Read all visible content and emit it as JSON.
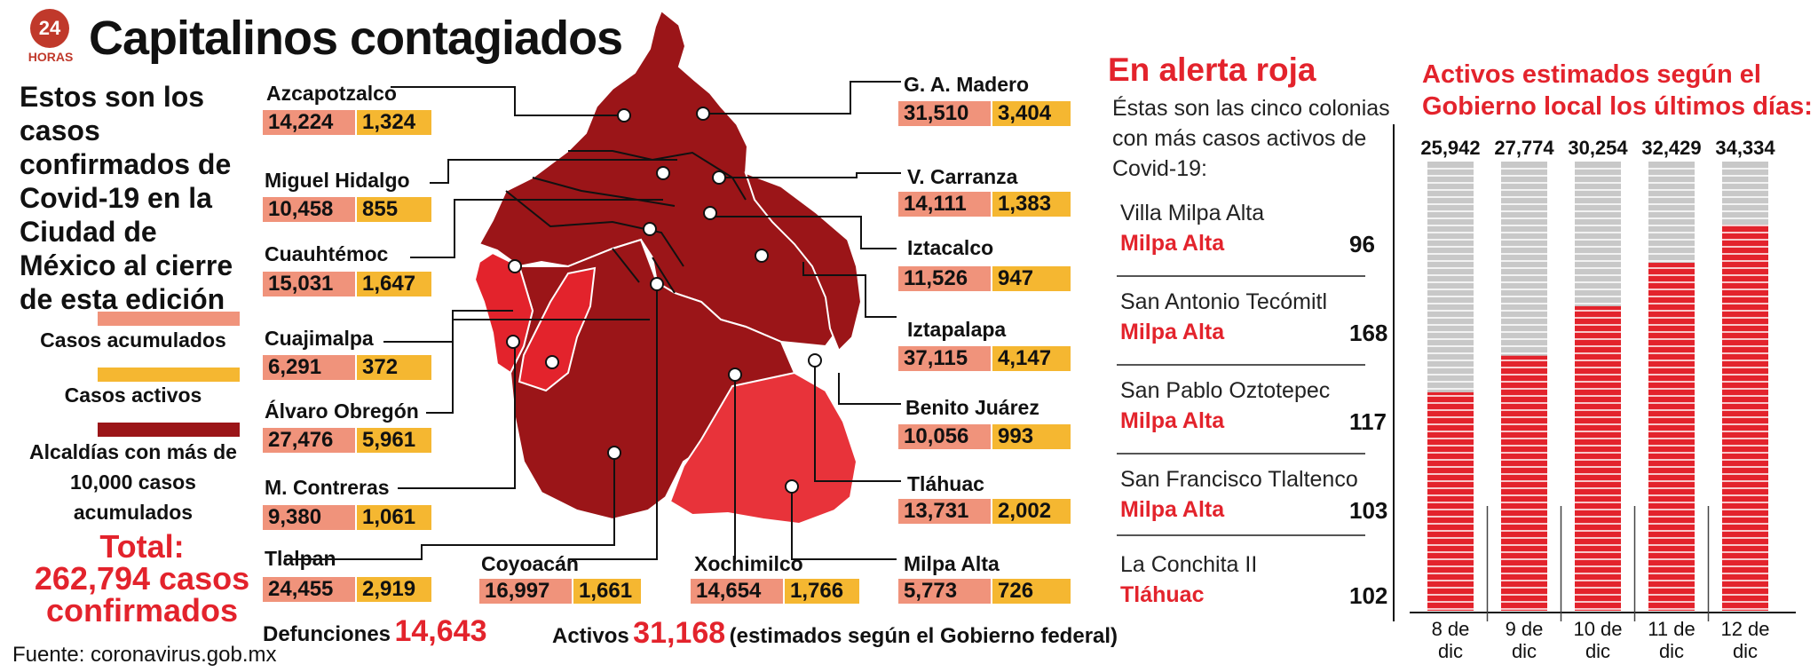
{
  "header": {
    "logo_text": "24",
    "logo_word": "HORAS",
    "title": "Capitalinos contagiados"
  },
  "intro_text": "Estos son los casos confirmados de Covid-19 en la Ciudad de México al cierre de esta edición",
  "legend": {
    "accumulated": "Casos acumulados",
    "active": "Casos activos",
    "over_10000": "Alcaldías con más de 10,000 casos acumulados"
  },
  "total": {
    "line1": "Total:",
    "line2": "262,794 casos",
    "line3": "confirmados"
  },
  "source": "Fuente: coronavirus.gob.mx",
  "colors": {
    "accumulated": "#f0937b",
    "active": "#f5b731",
    "dark_red": "#9b1518",
    "red": "#e3232c",
    "light_red": "#e8333a",
    "gray": "#c8c8c8"
  },
  "boroughs": [
    {
      "name": "Azcapotzalco",
      "accumulated": "14,224",
      "active": "1,324"
    },
    {
      "name": "Miguel Hidalgo",
      "accumulated": "10,458",
      "active": "855"
    },
    {
      "name": "Cuauhtémoc",
      "accumulated": "15,031",
      "active": "1,647"
    },
    {
      "name": "Cuajimalpa",
      "accumulated": "6,291",
      "active": "372"
    },
    {
      "name": "Álvaro Obregón",
      "accumulated": "27,476",
      "active": "5,961"
    },
    {
      "name": "M. Contreras",
      "accumulated": "9,380",
      "active": "1,061"
    },
    {
      "name": "Tlalpan",
      "accumulated": "24,455",
      "active": "2,919"
    },
    {
      "name": "Coyoacán",
      "accumulated": "16,997",
      "active": "1,661"
    },
    {
      "name": "Xochimilco",
      "accumulated": "14,654",
      "active": "1,766"
    },
    {
      "name": "Milpa Alta",
      "accumulated": "5,773",
      "active": "726"
    },
    {
      "name": "Tláhuac",
      "accumulated": "13,731",
      "active": "2,002"
    },
    {
      "name": "Benito Juárez",
      "accumulated": "10,056",
      "active": "993"
    },
    {
      "name": "Iztapalapa",
      "accumulated": "37,115",
      "active": "4,147"
    },
    {
      "name": "Iztacalco",
      "accumulated": "11,526",
      "active": "947"
    },
    {
      "name": "V. Carranza",
      "accumulated": "14,111",
      "active": "1,383"
    },
    {
      "name": "G. A. Madero",
      "accumulated": "31,510",
      "active": "3,404"
    }
  ],
  "deaths": {
    "label": "Defunciones",
    "value": "14,643"
  },
  "actives": {
    "label": "Activos",
    "value": "31,168",
    "note": "(estimados según el Gobierno federal)"
  },
  "alert": {
    "title": "En alerta roja",
    "description": "Éstas son las cinco colonias con más casos activos de Covid-19:",
    "colonias": [
      {
        "name": "Villa Milpa Alta",
        "alcaldia": "Milpa Alta",
        "count": "96"
      },
      {
        "name": "San Antonio Tecómitl",
        "alcaldia": "Milpa Alta",
        "count": "168"
      },
      {
        "name": "San Pablo Oztotepec",
        "alcaldia": "Milpa Alta",
        "count": "117"
      },
      {
        "name": "San Francisco Tlaltenco",
        "alcaldia": "Milpa Alta",
        "count": "103"
      },
      {
        "name": "La Conchita II",
        "alcaldia": "Tláhuac",
        "count": "102"
      }
    ]
  },
  "chart_data": {
    "type": "bar",
    "title": "Activos estimados según el Gobierno local los últimos días:",
    "categories": [
      "8 de dic",
      "9 de dic",
      "10 de dic",
      "11 de dic",
      "12 de dic"
    ],
    "values": [
      25942,
      27774,
      30254,
      32429,
      34334
    ],
    "value_labels": [
      "25,942",
      "27,774",
      "30,254",
      "32,429",
      "34,334"
    ],
    "ylim": [
      15000,
      37500
    ],
    "grid": false,
    "legend": "none"
  }
}
